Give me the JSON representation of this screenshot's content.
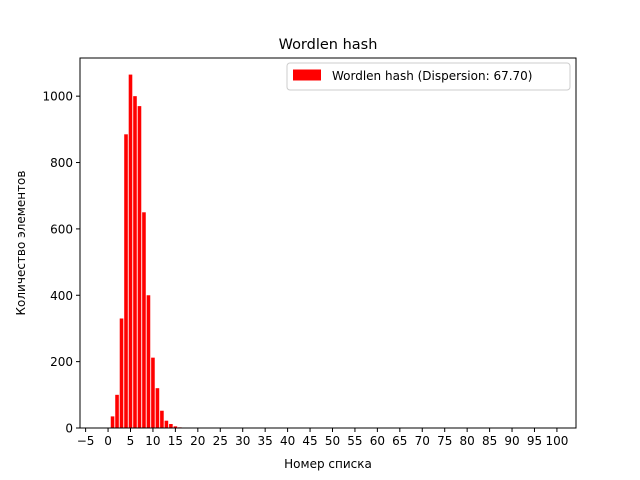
{
  "chart_data": {
    "type": "bar",
    "title": "Wordlen hash",
    "xlabel": "Номер списка",
    "ylabel": "Количество элементов",
    "xlim": [
      -6.25,
      104.25
    ],
    "ylim": [
      0,
      1115
    ],
    "xticks": [
      -5,
      0,
      5,
      10,
      15,
      20,
      25,
      30,
      35,
      40,
      45,
      50,
      55,
      60,
      65,
      70,
      75,
      80,
      85,
      90,
      95,
      100
    ],
    "yticks": [
      0,
      200,
      400,
      600,
      800,
      1000
    ],
    "bar_color": "#ff0000",
    "legend": {
      "position": "top-right"
    },
    "series": [
      {
        "name": "Wordlen hash (Dispersion: 67.70)",
        "x": [
          0,
          1,
          2,
          3,
          4,
          5,
          6,
          7,
          8,
          9,
          10,
          11,
          12,
          13,
          14,
          15,
          16,
          17,
          18,
          19,
          20,
          21,
          22,
          23,
          24,
          25,
          26,
          27,
          28,
          29,
          30,
          31,
          32,
          33,
          34,
          35,
          36,
          37,
          38,
          39,
          40,
          41,
          42,
          43,
          44,
          45,
          46,
          47,
          48,
          49,
          50,
          51,
          52,
          53,
          54,
          55,
          56,
          57,
          58,
          59,
          60,
          61,
          62,
          63,
          64,
          65,
          66,
          67,
          68,
          69,
          70,
          71,
          72,
          73,
          74,
          75,
          76,
          77,
          78,
          79,
          80,
          81,
          82,
          83,
          84,
          85,
          86,
          87,
          88,
          89,
          90,
          91,
          92,
          93,
          94,
          95,
          96,
          97,
          98
        ],
        "values": [
          0,
          35,
          100,
          330,
          885,
          1065,
          1000,
          970,
          650,
          400,
          212,
          120,
          52,
          22,
          12,
          5,
          2,
          1,
          0,
          0,
          0,
          0,
          0,
          0,
          0,
          0,
          0,
          0,
          0,
          0,
          0,
          0,
          0,
          0,
          0,
          0,
          0,
          0,
          0,
          0,
          0,
          0,
          0,
          0,
          0,
          0,
          0,
          0,
          0,
          0,
          0,
          0,
          0,
          0,
          0,
          0,
          0,
          0,
          0,
          0,
          0,
          0,
          0,
          0,
          0,
          0,
          0,
          0,
          0,
          0,
          0,
          0,
          0,
          0,
          0,
          0,
          0,
          0,
          0,
          0,
          0,
          0,
          0,
          0,
          0,
          0,
          0,
          0,
          0,
          0,
          0,
          0,
          0,
          0,
          0,
          0,
          0,
          0,
          0
        ]
      }
    ]
  }
}
